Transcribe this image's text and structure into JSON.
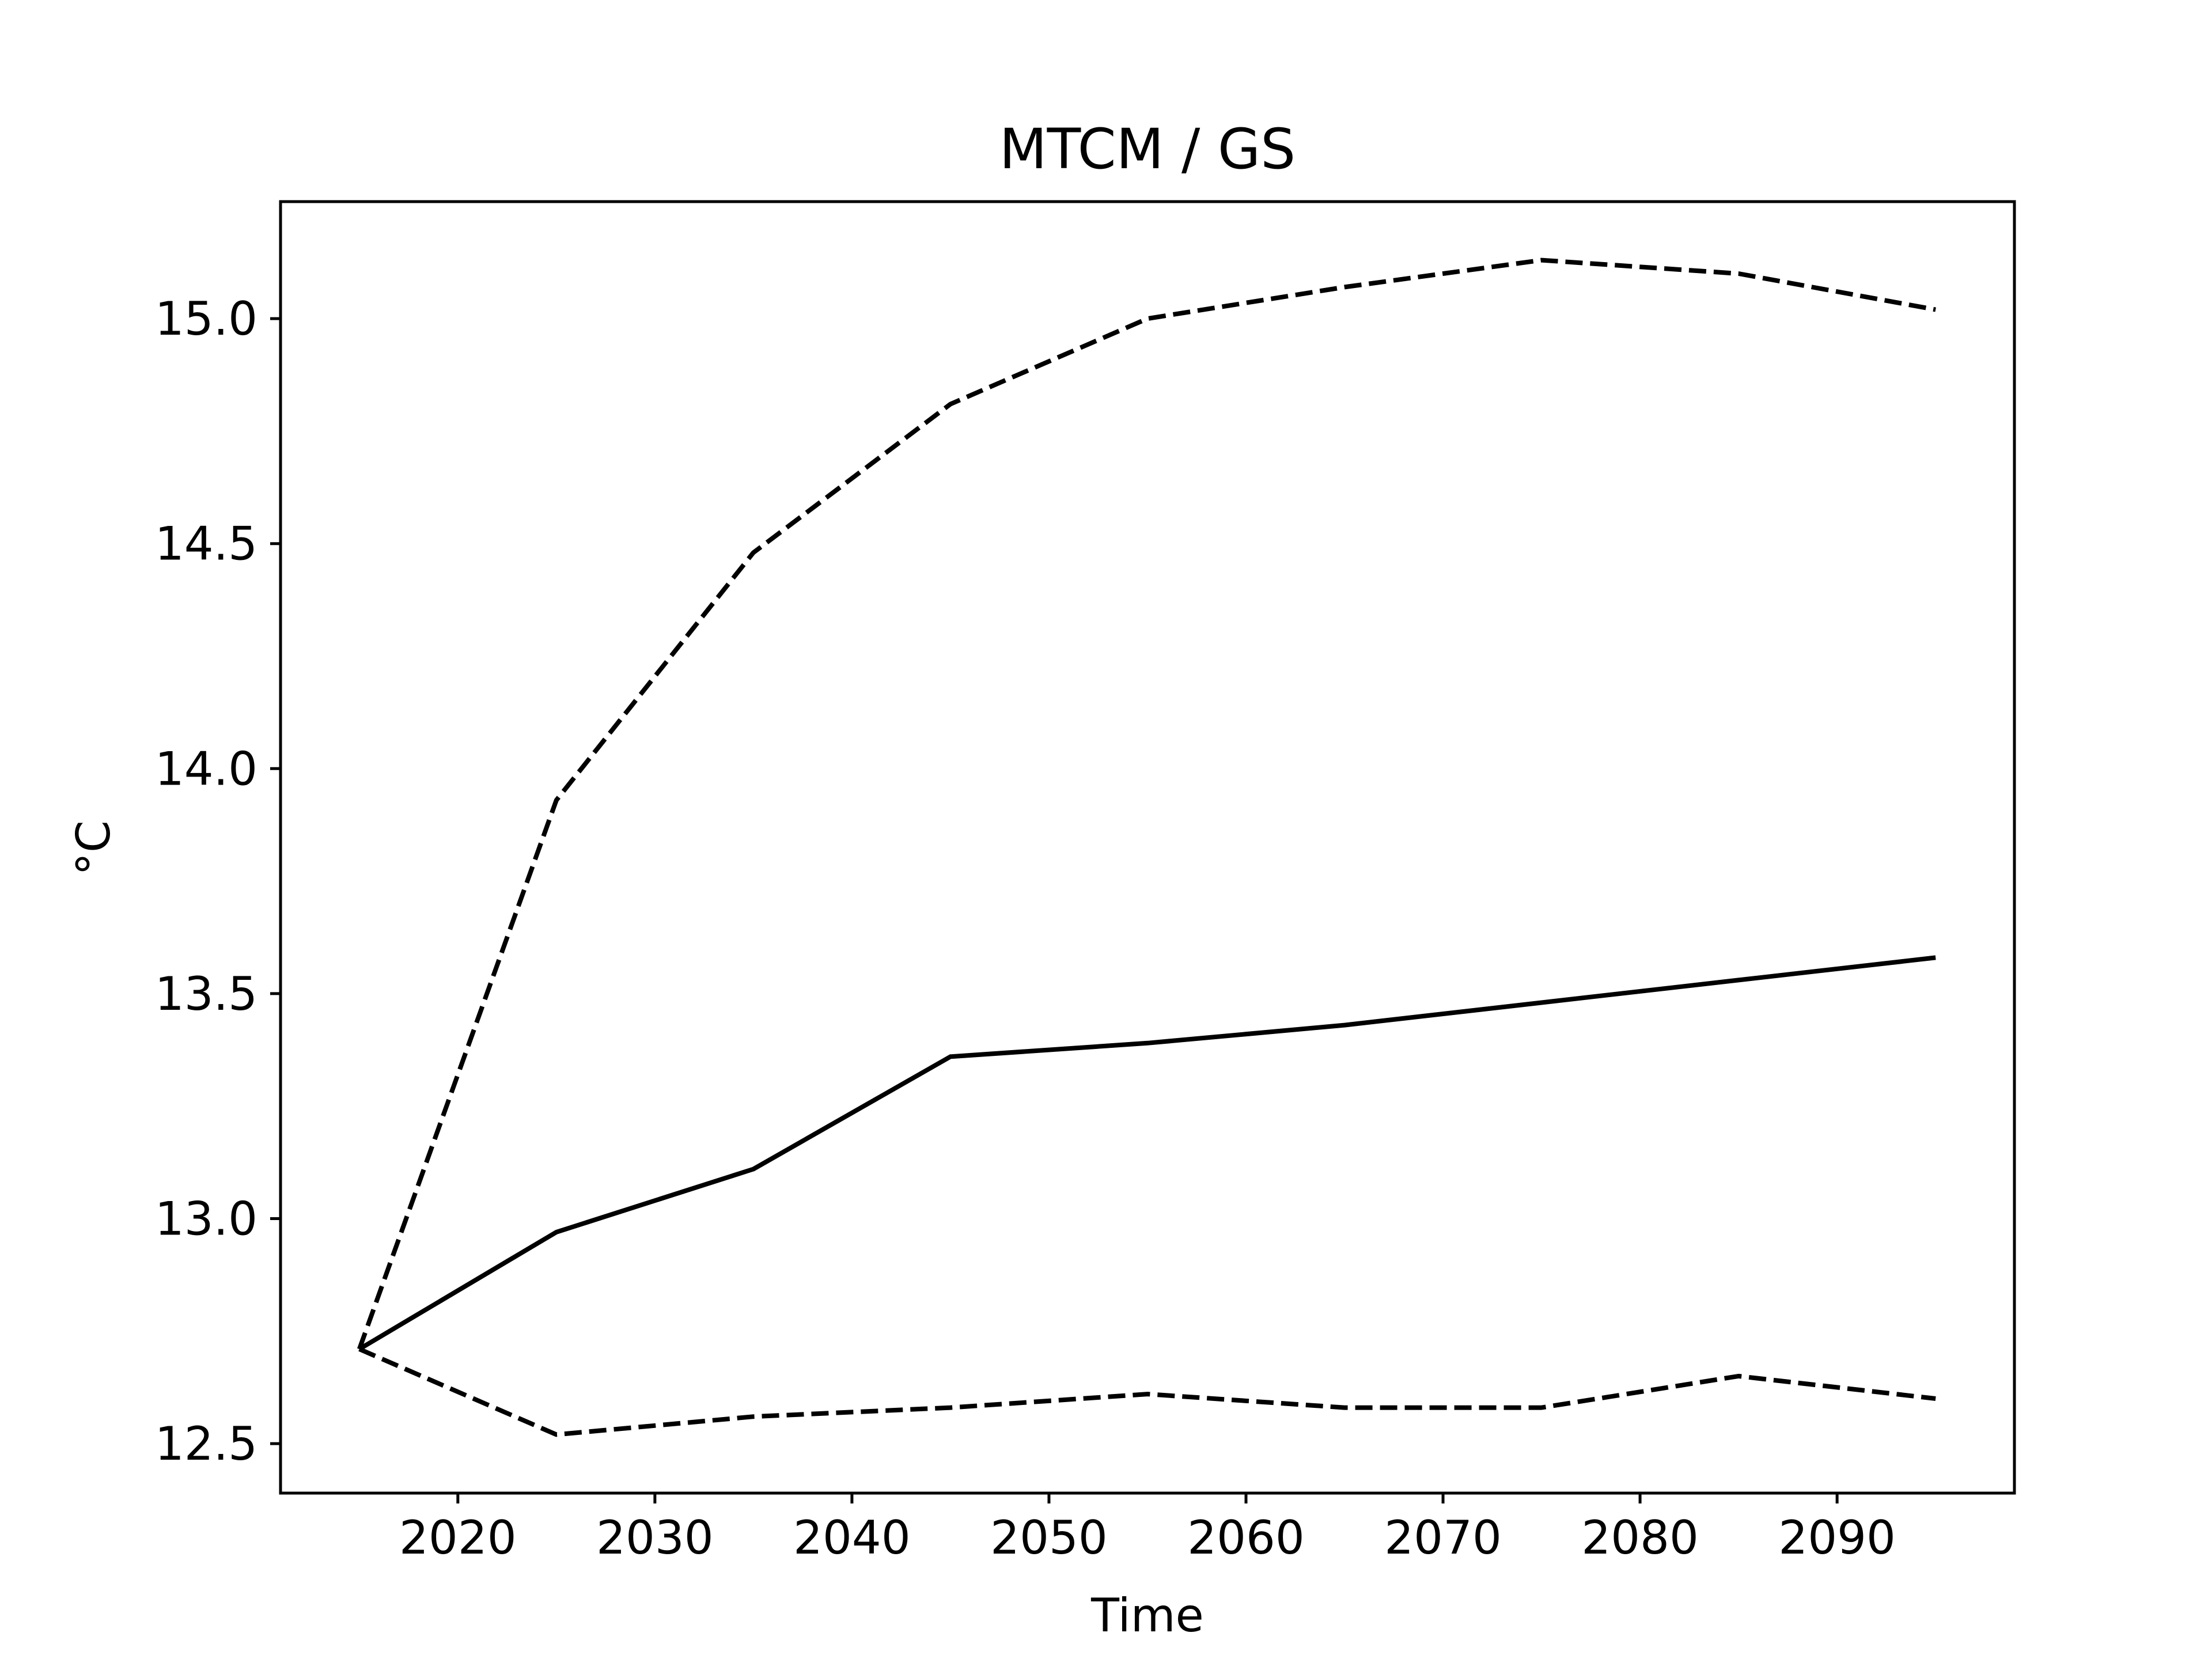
{
  "chart_data": {
    "type": "line",
    "title": "MTCM / GS",
    "xlabel": "Time",
    "ylabel": "°C",
    "xlim": [
      2011,
      2099
    ],
    "ylim": [
      12.39,
      15.26
    ],
    "xticks": [
      2020,
      2030,
      2040,
      2050,
      2060,
      2070,
      2080,
      2090
    ],
    "yticks": [
      12.5,
      13.0,
      13.5,
      14.0,
      14.5,
      15.0
    ],
    "xtick_labels": [
      "2020",
      "2030",
      "2040",
      "2050",
      "2060",
      "2070",
      "2080",
      "2090"
    ],
    "ytick_labels": [
      "12.5",
      "13.0",
      "13.5",
      "14.0",
      "14.5",
      "15.0"
    ],
    "grid": false,
    "legend": false,
    "x": [
      2015,
      2025,
      2035,
      2045,
      2055,
      2065,
      2075,
      2085,
      2095
    ],
    "series": [
      {
        "style": "solid",
        "color": "#000000",
        "values": [
          12.71,
          12.97,
          13.11,
          13.36,
          13.39,
          13.43,
          13.48,
          13.53,
          13.58
        ]
      },
      {
        "style": "dashed",
        "color": "#000000",
        "values": [
          12.71,
          13.93,
          14.48,
          14.81,
          15.0,
          15.07,
          15.13,
          15.1,
          15.02
        ]
      },
      {
        "style": "dashed",
        "color": "#000000",
        "values": [
          12.71,
          12.52,
          12.56,
          12.58,
          12.61,
          12.58,
          12.58,
          12.65,
          12.6
        ]
      }
    ]
  }
}
